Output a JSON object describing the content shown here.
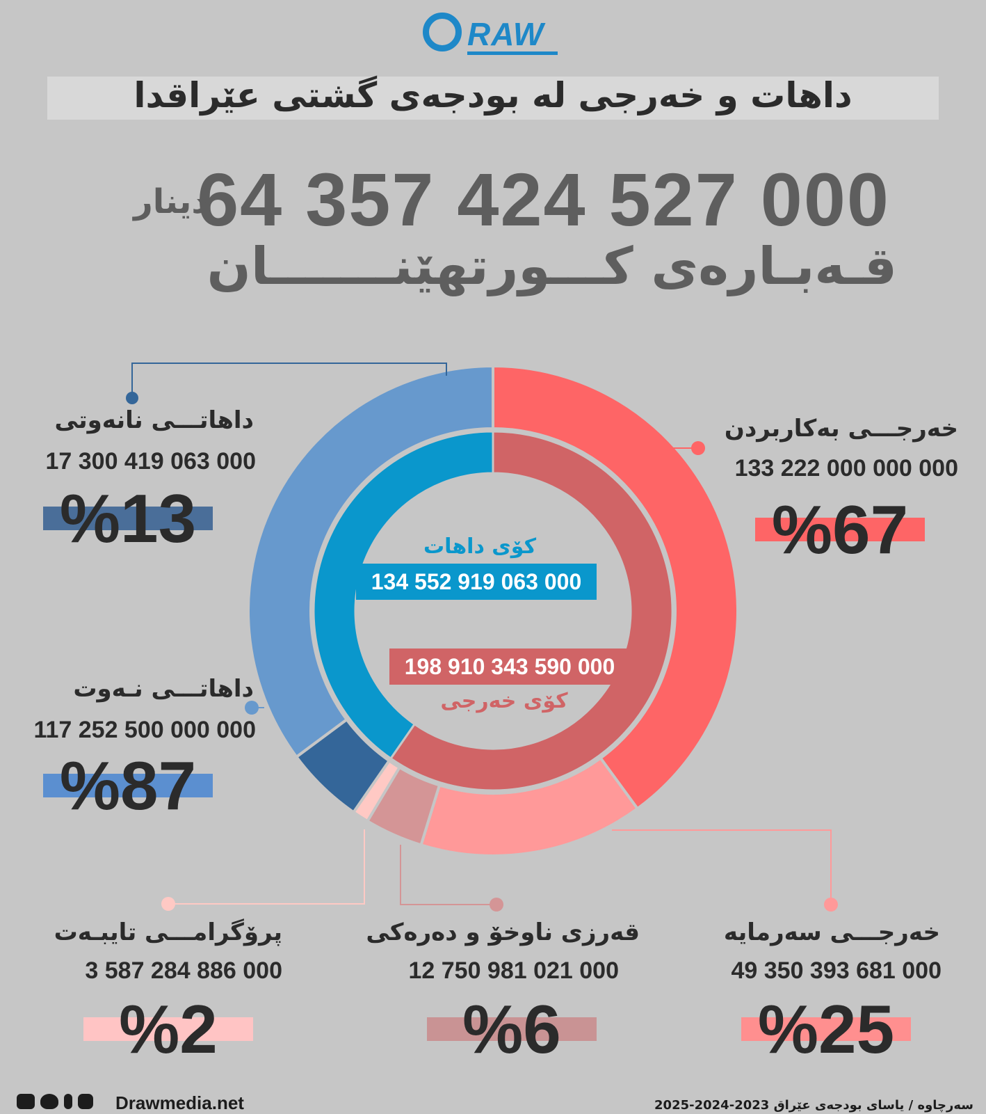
{
  "brand": {
    "logo_text": "RAW",
    "site": "Drawmedia.net"
  },
  "title": "داهات و خەرجی لە بودجەی گشتی عێراقدا",
  "total": {
    "amount": "64 357 424 527 000",
    "currency": "دینار",
    "label": "قـەبـارەی کـــورتهێنـــــــان"
  },
  "chart_data": {
    "type": "donut",
    "inner": {
      "series": [
        {
          "name": "کۆی داهات",
          "value": 134552919063000,
          "label_value": "134 552 919 063 000",
          "color": "#0a97cc"
        },
        {
          "name": "کۆی خەرجی",
          "value": 198910343590000,
          "label_value": "198 910 343 590 000",
          "color": "#d06466"
        }
      ]
    },
    "outer": {
      "series": [
        {
          "name": "خەرجـــی بەکاربردن",
          "value": 133222000000000,
          "label_value": "133 222 000 000 000",
          "percent": "%67",
          "color": "#fe6566",
          "bar_color": "#fe6566"
        },
        {
          "name": "خەرجـــی سەرمایە",
          "value": 49350393681000,
          "label_value": "49 350 393 681 000",
          "percent": "%25",
          "color": "#ff9999",
          "bar_color": "#ff8f8f"
        },
        {
          "name": "قەرزی ناوخۆ و دەرەکی",
          "value": 12750981021000,
          "label_value": "12 750 981 021 000",
          "percent": "%6",
          "color": "#d49596",
          "bar_color": "#c99394"
        },
        {
          "name": "پرۆگرامـــی تایبـەت",
          "value": 3587284886000,
          "label_value": "3 587 284 886 000",
          "percent": "%2",
          "color": "#ffc9c4",
          "bar_color": "#ffc4c4"
        },
        {
          "name": "داهاتـــی نـەوت",
          "value": 117252500000000,
          "label_value": "117 252 500 000 000",
          "percent": "%87",
          "color": "#6799cd",
          "bar_color": "#5b8fd0"
        },
        {
          "name": "داهاتـــی نانەوتی",
          "value": 17300419063000,
          "label_value": "17 300 419 063 000",
          "percent": "%13",
          "color": "#346699",
          "bar_color": "#4a6e99"
        }
      ]
    }
  },
  "footer": {
    "source": "سەرچاوە / یاسای بودجەی عێراق 2023-2024-2025",
    "social_icons": [
      "youtube-icon",
      "twitter-icon",
      "facebook-icon",
      "instagram-icon"
    ]
  }
}
